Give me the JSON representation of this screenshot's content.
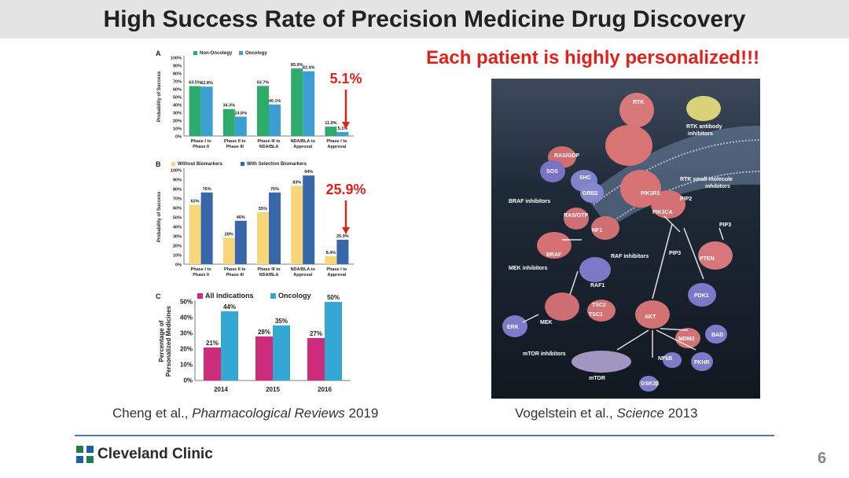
{
  "page": {
    "title": "High Success Rate of Precision Medicine Drug Discovery",
    "subtitle": "Each patient is highly personalized!!!",
    "page_number": "6"
  },
  "left_caption": {
    "authors": "Cheng et al., ",
    "journal": "Pharmacological Reviews",
    "year": " 2019"
  },
  "right_caption": {
    "authors": "Vogelstein  et al., ",
    "journal": "Science",
    "year": " 2013"
  },
  "logo": {
    "name": "Cleveland Clinic"
  },
  "colors": {
    "green": "#2eaa6b",
    "blue": "#3b9fd2",
    "yellow": "#f7d77a",
    "navy": "#3767a8",
    "magenta": "#cc2c7b",
    "cyan": "#34a8d4",
    "red": "#e32119"
  },
  "chart_data": [
    {
      "panel": "A",
      "type": "bar",
      "ylabel": "Probability of Success",
      "ylim": [
        0,
        100
      ],
      "yticks": [
        "0%",
        "10%",
        "20%",
        "30%",
        "40%",
        "50%",
        "60%",
        "70%",
        "80%",
        "90%",
        "100%"
      ],
      "categories": [
        "Phase I to Phase II",
        "Phase II to Phase III",
        "Phase III to NDA/BLA",
        "NDA/BLA to Approval",
        "Phase I to Approval"
      ],
      "category_lines": [
        [
          "Phase I to",
          "Phase II"
        ],
        [
          "Phase II to",
          "Phase III"
        ],
        [
          "Phase III to",
          "NDA/BLA"
        ],
        [
          "NDA/BLA to",
          "Approval"
        ],
        [
          "Phase I to",
          "Approval"
        ]
      ],
      "series": [
        {
          "name": "Non-Oncology",
          "values": [
            63.5,
            34.3,
            63.7,
            85.9,
            11.9
          ],
          "labels": [
            "63.5%",
            "34.3%",
            "63.7%",
            "85.9%",
            "11.9%"
          ]
        },
        {
          "name": "Oncology",
          "values": [
            62.8,
            24.6,
            40.1,
            82.4,
            5.1
          ],
          "labels": [
            "62.8%",
            "24.6%",
            "40.1%",
            "82.4%",
            "5.1%"
          ]
        }
      ],
      "annotation": "5.1%"
    },
    {
      "panel": "B",
      "type": "bar",
      "ylabel": "Probability of Success",
      "ylim": [
        0,
        100
      ],
      "yticks": [
        "0%",
        "10%",
        "20%",
        "30%",
        "40%",
        "50%",
        "60%",
        "70%",
        "80%",
        "90%",
        "100%"
      ],
      "categories": [
        "Phase I to Phase II",
        "Phase II to Phase III",
        "Phase III to NDA/BLA",
        "NDA/BLA to Approval",
        "Phase I to Approval"
      ],
      "category_lines": [
        [
          "Phase I to",
          "Phase II"
        ],
        [
          "Phase II to",
          "Phase III"
        ],
        [
          "Phase III to",
          "NDA/BLA"
        ],
        [
          "NDA/BLA to",
          "Approval"
        ],
        [
          "Phase I to",
          "Approval"
        ]
      ],
      "series": [
        {
          "name": "Without Biomarkers",
          "values": [
            63,
            28,
            55,
            83,
            8.4
          ],
          "labels": [
            "63%",
            "28%",
            "55%",
            "83%",
            "8.4%"
          ]
        },
        {
          "name": "With Selection Biomarkers",
          "values": [
            76,
            46,
            76,
            94,
            25.9
          ],
          "labels": [
            "76%",
            "46%",
            "76%",
            "94%",
            "25.9%"
          ]
        }
      ],
      "annotation": "25.9%"
    },
    {
      "panel": "C",
      "type": "bar",
      "ylabel": "Percentage of Personalized Medicines",
      "ylabel_lines": [
        "Percentage of",
        "Personalized Medicines"
      ],
      "ylim": [
        0,
        50
      ],
      "yticks": [
        "0%",
        "10%",
        "20%",
        "30%",
        "40%",
        "50%"
      ],
      "categories": [
        "2014",
        "2015",
        "2016"
      ],
      "series": [
        {
          "name": "All indications",
          "values": [
            21,
            28,
            27
          ],
          "labels": [
            "21%",
            "28%",
            "27%"
          ]
        },
        {
          "name": "Oncology",
          "values": [
            44,
            35,
            50
          ],
          "labels": [
            "44%",
            "35%",
            "50%"
          ]
        }
      ]
    }
  ],
  "pathway_labels": [
    "RTK",
    "RTK antibody",
    "inhibitors",
    "RTK small-molecule",
    "inhibitors",
    "RAS/GDP",
    "SOS",
    "SHC",
    "GRB2",
    "PIK3R1",
    "PIP2",
    "PIK3CA",
    "BRAF inhibitors",
    "RAS/GTP",
    "NF1",
    "PIP3",
    "BRAF",
    "RAF inhibitors",
    "PIP3",
    "PTEN",
    "MEK inhibitors",
    "RAF1",
    "PDK1",
    "TSC2",
    "TSC1",
    "AKT",
    "MEK",
    "ERK",
    "MDM2",
    "BAD",
    "mTOR inhibitors",
    "NFkB",
    "FKHR",
    "mTOR",
    "GSK3β"
  ]
}
